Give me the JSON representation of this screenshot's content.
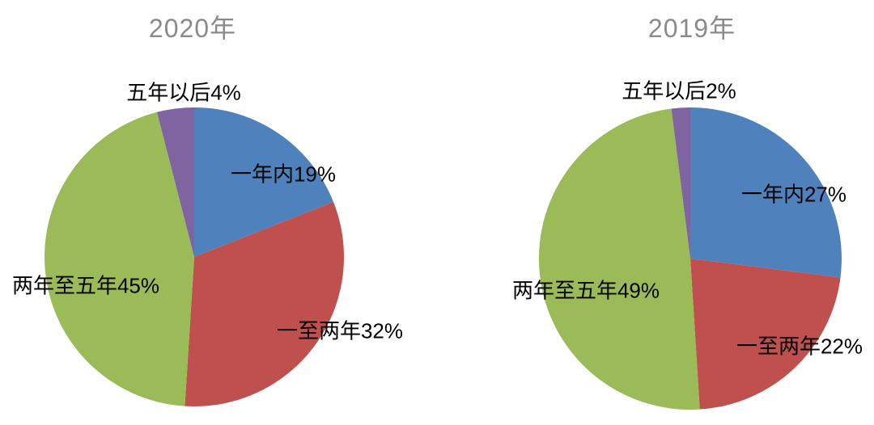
{
  "page": {
    "background": "#ffffff",
    "text_color": "#000000",
    "title_color": "#8a8a8a"
  },
  "chart_data": [
    {
      "type": "pie",
      "title": "2020年",
      "categories": [
        "一年内",
        "一至两年",
        "两年至五年",
        "五年以后"
      ],
      "values": [
        19,
        32,
        45,
        4
      ],
      "unit": "%",
      "labels": [
        "一年内19%",
        "一至两年32%",
        "两年至五年45%",
        "五年以后4%"
      ],
      "colors": [
        "#4f81bd",
        "#c0504d",
        "#9bbb59",
        "#8064a2"
      ],
      "start_angle": "12-oclock",
      "direction": "clockwise",
      "legend": "none"
    },
    {
      "type": "pie",
      "title": "2019年",
      "categories": [
        "一年内",
        "一至两年",
        "两年至五年",
        "五年以后"
      ],
      "values": [
        27,
        22,
        49,
        2
      ],
      "unit": "%",
      "labels": [
        "一年内27%",
        "一至两年22%",
        "两年至五年49%",
        "五年以后2%"
      ],
      "colors": [
        "#4f81bd",
        "#c0504d",
        "#9bbb59",
        "#8064a2"
      ],
      "start_angle": "12-oclock",
      "direction": "clockwise",
      "legend": "none"
    }
  ]
}
